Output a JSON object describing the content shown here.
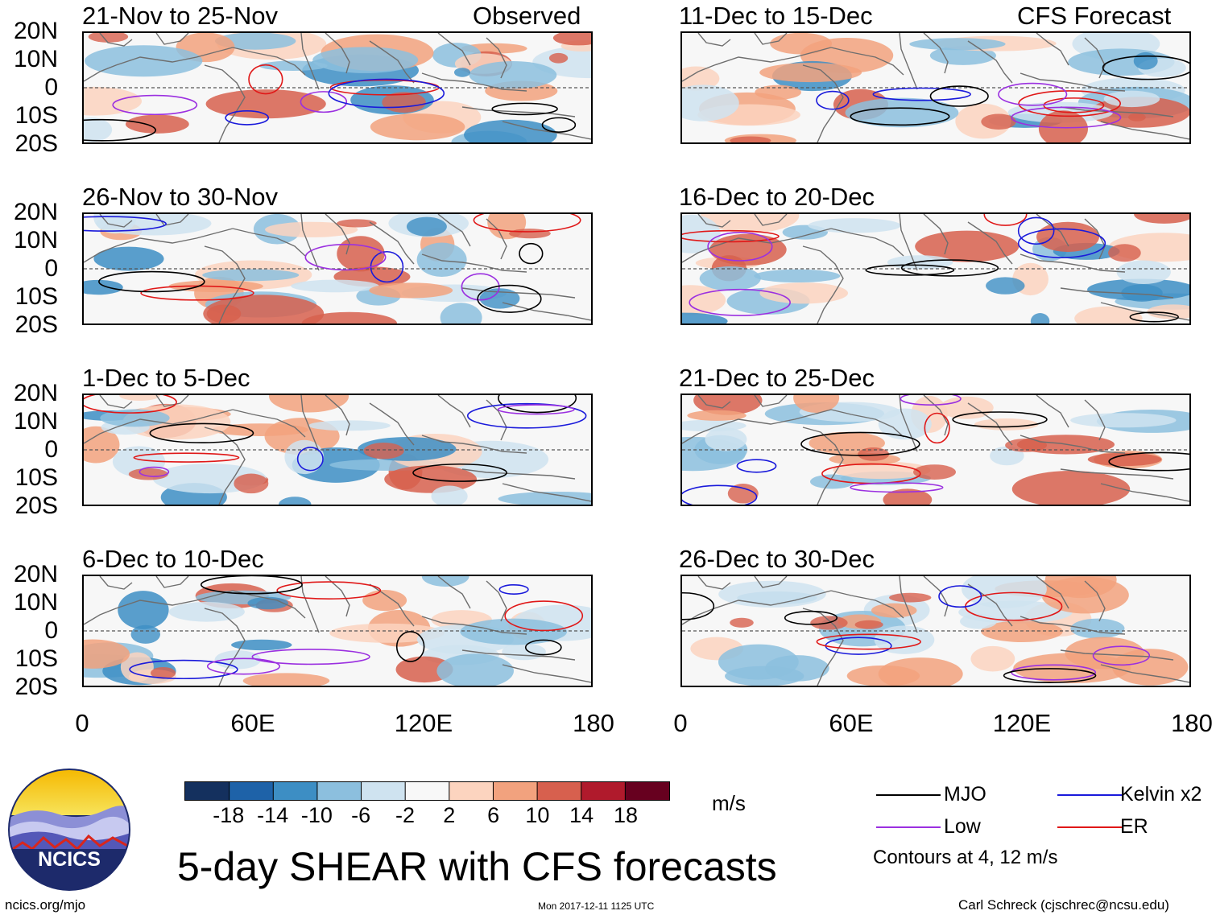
{
  "header": {
    "observed_label": "Observed",
    "forecast_label": "CFS Forecast"
  },
  "panels_left": [
    {
      "title": "21-Nov to 25-Nov",
      "seed": 1
    },
    {
      "title": "26-Nov to 30-Nov",
      "seed": 2
    },
    {
      "title": "1-Dec to 5-Dec",
      "seed": 3
    },
    {
      "title": "6-Dec to 10-Dec",
      "seed": 4
    }
  ],
  "panels_right": [
    {
      "title": "11-Dec to 15-Dec",
      "seed": 5
    },
    {
      "title": "16-Dec to 20-Dec",
      "seed": 6
    },
    {
      "title": "21-Dec to 25-Dec",
      "seed": 7
    },
    {
      "title": "26-Dec to 30-Dec",
      "seed": 8
    }
  ],
  "axes": {
    "lat_labels": [
      "20N",
      "10N",
      "0",
      "10S",
      "20S"
    ],
    "lon_labels": [
      "0",
      "60E",
      "120E",
      "180"
    ]
  },
  "colorbar": {
    "ticks": [
      "-18",
      "-14",
      "-10",
      "-6",
      "-2",
      "2",
      "6",
      "10",
      "14",
      "18"
    ],
    "unit": "m/s",
    "colors": [
      "#14305e",
      "#1e62a8",
      "#3d8ec4",
      "#8cbfde",
      "#cfe3f0",
      "#f8f8f8",
      "#fcd4bf",
      "#f2a27e",
      "#d7604e",
      "#b01a2c",
      "#67001f"
    ]
  },
  "legend": {
    "mjo": {
      "label": "MJO",
      "color": "#000000"
    },
    "kelvin": {
      "label": "Kelvin x2",
      "color": "#1a1adb"
    },
    "low": {
      "label": "Low",
      "color": "#9b30e0"
    },
    "er": {
      "label": "ER",
      "color": "#e01818"
    },
    "note": "Contours at 4, 12 m/s"
  },
  "title": "5-day SHEAR with CFS forecasts",
  "logo_text": "NCICS",
  "footer": {
    "url": "ncics.org/mjo",
    "timestamp": "Mon 2017-12-11 1125 UTC",
    "credit": "Carl Schreck (cjschrec@ncsu.edu)"
  }
}
